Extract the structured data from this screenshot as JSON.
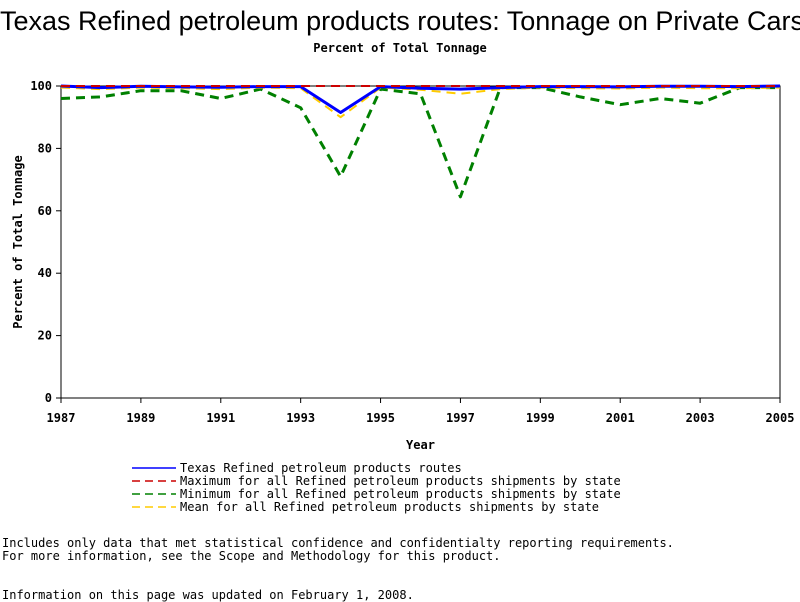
{
  "chart_data": {
    "type": "line",
    "title": "Texas Refined petroleum products routes: Tonnage on Private Cars",
    "subtitle": "Percent of Total Tonnage",
    "xlabel": "Year",
    "ylabel": "Percent of Total Tonnage",
    "xlim": [
      1987,
      2005
    ],
    "ylim": [
      0,
      100
    ],
    "xticks": [
      1987,
      1989,
      1991,
      1993,
      1995,
      1997,
      1999,
      2001,
      2003,
      2005
    ],
    "yticks": [
      0,
      20,
      40,
      60,
      80,
      100
    ],
    "x": [
      1987,
      1988,
      1989,
      1990,
      1991,
      1992,
      1993,
      1994,
      1995,
      1996,
      1997,
      1998,
      1999,
      2000,
      2001,
      2002,
      2003,
      2004,
      2005
    ],
    "series": [
      {
        "name": "Texas Refined petroleum products routes",
        "color": "#0000ff",
        "dash": "solid",
        "values": [
          100,
          99.5,
          99.9,
          99.7,
          99.6,
          99.8,
          99.8,
          91.5,
          99.8,
          99.3,
          99.0,
          99.5,
          99.8,
          99.8,
          99.7,
          99.9,
          99.9,
          99.8,
          100
        ]
      },
      {
        "name": "Maximum for all Refined petroleum products shipments by state",
        "color": "#cc0000",
        "dash": "dashed",
        "values": [
          100,
          100,
          100,
          100,
          100,
          100,
          100,
          100,
          100,
          100,
          100,
          100,
          100,
          100,
          100,
          100,
          100,
          100,
          100
        ]
      },
      {
        "name": "Minimum for all Refined petroleum products shipments by state",
        "color": "#008000",
        "dash": "dashed",
        "values": [
          96,
          96.5,
          98.5,
          98.5,
          96,
          99,
          93,
          71,
          99,
          97.5,
          64.5,
          99.5,
          99.5,
          96.5,
          94,
          96,
          94.5,
          99.5,
          99.5
        ]
      },
      {
        "name": "Mean for all Refined petroleum products shipments by state",
        "color": "#ffcc00",
        "dash": "dashed",
        "values": [
          99.5,
          99,
          99.5,
          99.3,
          99,
          99.5,
          99.3,
          90,
          99.5,
          98.8,
          97.5,
          99,
          99.5,
          99.3,
          99.2,
          99.5,
          99.3,
          99.3,
          99.5
        ]
      }
    ],
    "grid": false,
    "legend_position": "bottom"
  },
  "notes": {
    "line1": "Includes only data that met statistical confidence and confidentialty reporting requirements.",
    "line2": "For more information, see the Scope and Methodology for this product.",
    "updated": "Information on this page was updated on February 1, 2008."
  }
}
